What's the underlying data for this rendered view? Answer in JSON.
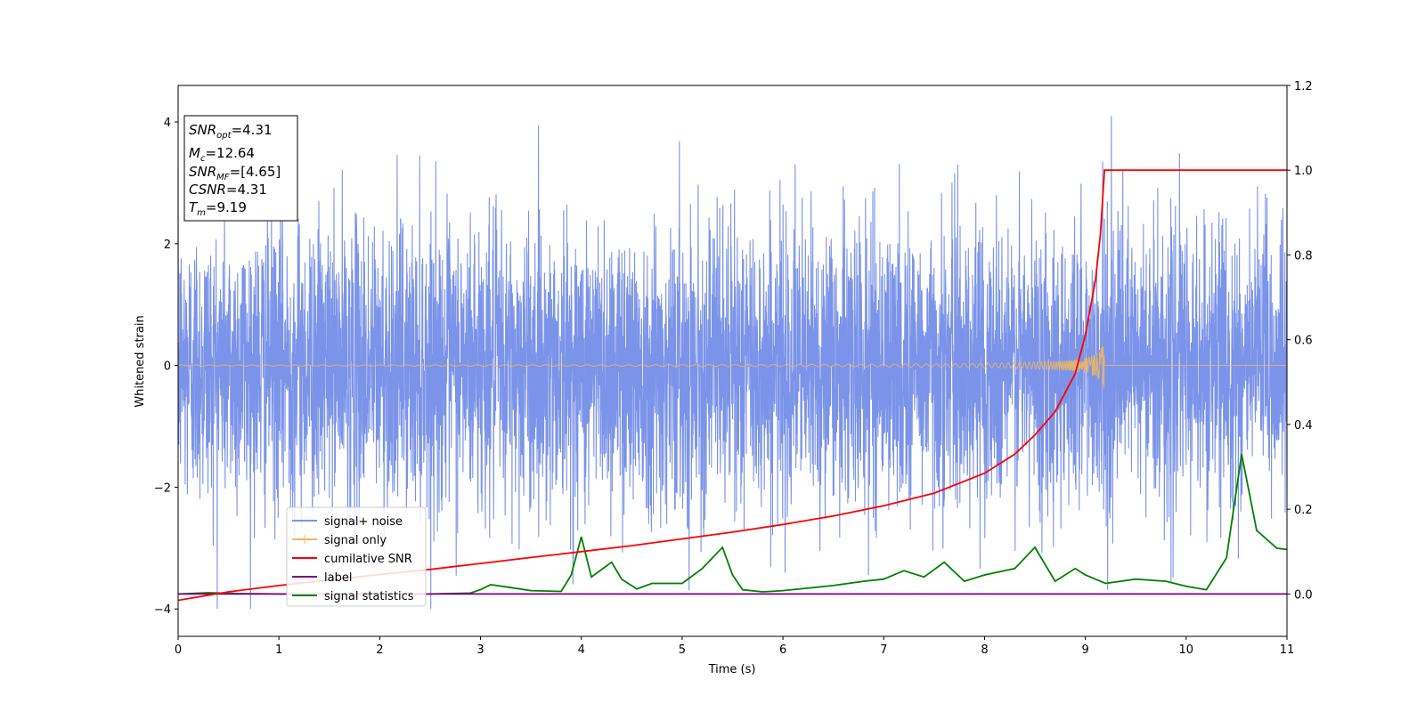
{
  "chart_data": {
    "type": "line",
    "xlabel": "Time (s)",
    "ylabel": "Whitened strain",
    "xlim": [
      0,
      11
    ],
    "ylim": [
      -4.45,
      4.6
    ],
    "y2lim": [
      -0.1,
      1.2
    ],
    "xticks": [
      "0",
      "1",
      "2",
      "3",
      "4",
      "5",
      "6",
      "7",
      "8",
      "9",
      "10",
      "11"
    ],
    "yticks": [
      "−4",
      "−2",
      "0",
      "2",
      "4"
    ],
    "y2ticks": [
      "0.0",
      "0.2",
      "0.4",
      "0.6",
      "0.8",
      "1.0",
      "1.2"
    ],
    "annotation": {
      "snr_opt": "=4.31",
      "mc": "=12.64",
      "snr_mf": "=[4.65]",
      "csnr": "=4.31",
      "tm": "=9.19"
    },
    "legend": {
      "position": "lower-left",
      "items": [
        "signal+ noise",
        "signal only",
        "cumilative SNR",
        "label",
        "signal statistics"
      ]
    },
    "colors": {
      "signal_noise": "#7b93e8",
      "signal_only": "#f0b860",
      "cumulative_snr": "#ff0000",
      "label": "#800080",
      "signal_statistics": "#008000"
    },
    "merger_time": 9.19,
    "series": [
      {
        "name": "cumilative SNR",
        "axis": "right",
        "x": [
          0,
          0.5,
          1,
          1.5,
          2,
          2.5,
          3,
          3.5,
          4,
          4.5,
          5,
          5.5,
          6,
          6.5,
          7,
          7.5,
          8,
          8.3,
          8.5,
          8.7,
          8.9,
          9.0,
          9.1,
          9.15,
          9.19,
          9.3,
          10,
          11
        ],
        "y": [
          -0.015,
          0.005,
          0.02,
          0.033,
          0.046,
          0.058,
          0.072,
          0.086,
          0.1,
          0.114,
          0.13,
          0.146,
          0.164,
          0.184,
          0.208,
          0.238,
          0.285,
          0.33,
          0.375,
          0.43,
          0.52,
          0.61,
          0.74,
          0.85,
          1.0,
          1.0,
          1.0,
          1.0
        ]
      },
      {
        "name": "signal statistics",
        "axis": "right",
        "x": [
          0,
          0.3,
          0.6,
          1.0,
          1.5,
          2.0,
          2.5,
          2.9,
          3.0,
          3.1,
          3.3,
          3.5,
          3.8,
          3.9,
          4.0,
          4.1,
          4.3,
          4.4,
          4.55,
          4.7,
          5.0,
          5.2,
          5.4,
          5.5,
          5.6,
          5.8,
          6.0,
          6.5,
          6.8,
          7.0,
          7.2,
          7.4,
          7.6,
          7.8,
          8.0,
          8.3,
          8.5,
          8.7,
          8.9,
          9.0,
          9.2,
          9.5,
          9.8,
          10.0,
          10.2,
          10.4,
          10.55,
          10.7,
          10.9,
          11.0
        ],
        "y": [
          0.0,
          0.003,
          0.001,
          0.0,
          0.0,
          0.0,
          0.0,
          0.002,
          0.01,
          0.022,
          0.015,
          0.008,
          0.006,
          0.045,
          0.135,
          0.04,
          0.075,
          0.035,
          0.012,
          0.025,
          0.025,
          0.06,
          0.11,
          0.045,
          0.01,
          0.005,
          0.008,
          0.02,
          0.03,
          0.035,
          0.055,
          0.04,
          0.075,
          0.03,
          0.045,
          0.06,
          0.11,
          0.03,
          0.06,
          0.045,
          0.025,
          0.035,
          0.03,
          0.018,
          0.01,
          0.085,
          0.33,
          0.15,
          0.108,
          0.105
        ]
      },
      {
        "name": "label",
        "axis": "right",
        "x": [
          0,
          11
        ],
        "y": [
          0,
          0
        ]
      }
    ]
  }
}
